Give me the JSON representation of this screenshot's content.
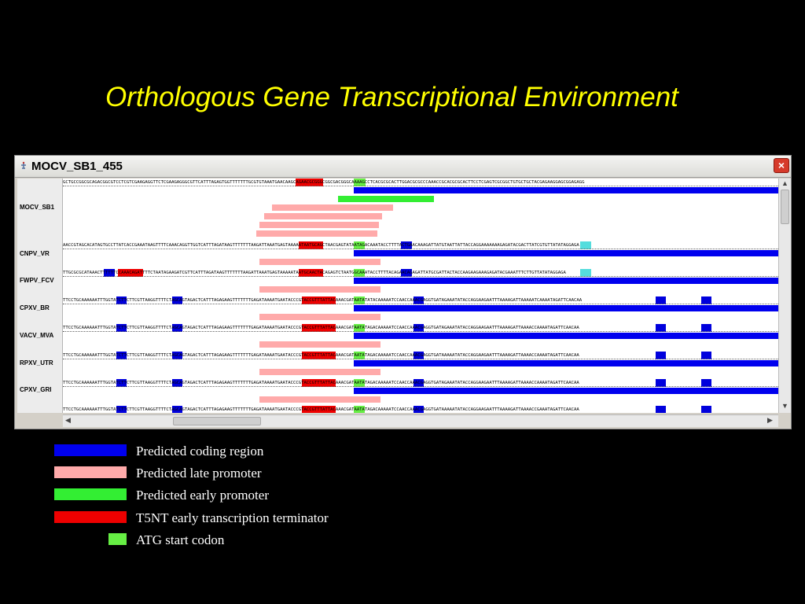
{
  "slide": {
    "title": "Orthologous Gene Transcriptional Environment"
  },
  "window": {
    "title": "MOCV_SB1_455",
    "close_label": "×"
  },
  "colors": {
    "coding": "#0000ee",
    "late_promoter": "#ffaaaa",
    "early_promoter": "#33ee33",
    "terminator": "#ee0000",
    "atg": "#66ee44",
    "alt_atg": "#55dddd",
    "motif": "#0000dd"
  },
  "tracks": [
    {
      "name": "MOCV_SB1",
      "sequence": "GCTGCCGGCGCAGACGGCGTCCTCGTCGAAGAGGTTCTCGAAGAGGGCGTTCATTTAGAGTGGTTTTTTTGCGTGTAAATGAACAAGCAGAACGCGGGCGGCGACGGGCAAAAGCCTCACGCGCACTTGGACGCGCCCAAACCGCACGCGCACTTCCTCGAGTCGCGGCTGTGCTGCTACGAGAAGGAGCGGAGAGG"
    },
    {
      "name": "CNPV_VR",
      "sequence": "AACCGTAGCACATAGTGCCTTATCACCGAAATAAGTTTTCAAACAGGTTGGTCATTTAGATAAGTTTTTTTAAGATTAAATGAGTAAAAATAATGCAGCTAACGAGTATAATAGACAAATACCTTTTACTGAACAAAGATTATGTAATTATTACCAGGAAAAAAAGAGATACGACTTATCGTGTTATATAGGAGA"
    },
    {
      "name": "FWPV_FCV",
      "sequence": "TTGCGCGCATAAACTTTTTTCCAAACAGATTTTCTAATAGAAGATCGTTCATTTAGATAAGTTTTTTTAAGATTAAATGAGTAAAAATAATGCAACTACAGAGTCTAATGGCAAATACCTTTTACAGAACAGAGATTATGCGATTACTACCAAGAAGAAAGAGATACGAAATTTCTTGTTATATAGGAGA"
    },
    {
      "name": "CPXV_BR",
      "sequence": "TTCCTGCAAAAAATTTGGTATCTTCTTCGTTAAGGTTTTCTAGCAGTAGACTCATTTAGAGAAGTTTTTTTGAGATAAAATGAATACCCGTACCGTTTATTACAAACGATAATATATACAAAAATCCAACCAAACGAGGTGATAGAAATATACCAGGAAGAATTTAAAAGATTAAAAATCAAAATAGATTCAACAA"
    },
    {
      "name": "VACV_MVA",
      "sequence": "TTCCTGCAAAAAATTTGGTATCTTCTTCGTTAAGGTTTTCTAGCAGTAGACTCATTTAGAGAAGTTTTTTTGAGATAAAATGAATACCCGTACCGTTTATTACAAACGATAATATAGACAAAAATCCAACCAAACGAGGTGATAGAAATATACCAGGAAGAATTTAAAAGATTAAAACCAAAATAGATTCAACAA"
    },
    {
      "name": "RPXV_UTR",
      "sequence": "TTCCTGCAAAAAATTTGGTATCTTCTTCGTTAAGGTTTTCTAGCAGTAGACTCATTTAGAGAAGTTTTTTTGAGATAAAATGAATACCCGTACCGTTTATTACAAACGATAATATAGACAAAAATCCAACCAAACGAGGTGATAAAAATATACCAGGAAGAATTTAAAAGATTAAAACCAAAATAGATTCAACAA"
    },
    {
      "name": "CPXV_GRI",
      "sequence": "TTCCTGCAAAAAATTTGGTATCTTCTTCGTTAAGGTTTTCTAGCAGTAGACTCATTTAGAGAAGTTTTTTTGAGATAAAATGAATACCCGTACCGTTTATTACAAACGATAATATAGACAAAAATCCAACCAAACGAGGTGATAGAAATATACCAGGAAGAATTTAAAAGATTAAAACCAAAATAGATTCAACAA"
    },
    {
      "name": "",
      "sequence": "TTCCTGCAAAAAATTTGGTATCTTCTTCGTTAAGGTTTTCTAGCAGTAGACTCATTTAGAGAAGTTTTTTTGAGATAAAATGAATACCCGTACCGTTTATTACAAACGATAATATAGACAAAAATCCAACCAAACGAGGTGATAAAAATATACCAGGAAGAATTTAAAAGATTAAAACCGAAATAGATTCAACAA"
    }
  ],
  "legend": [
    {
      "label": "Predicted coding region",
      "color": "#0000ee"
    },
    {
      "label": "Predicted late promoter",
      "color": "#ffaaaa"
    },
    {
      "label": "Predicted early promoter",
      "color": "#33ee33"
    },
    {
      "label": "T5NT early transcription terminator",
      "color": "#ee0000"
    },
    {
      "label": "ATG start codon",
      "color": "#66ee44"
    }
  ]
}
